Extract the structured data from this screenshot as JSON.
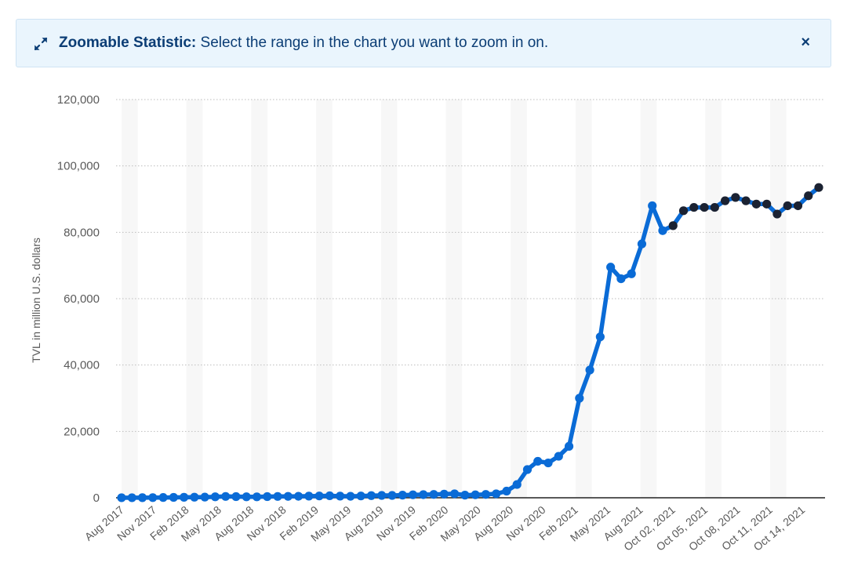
{
  "banner": {
    "title": "Zoomable Statistic:",
    "text": " Select the range in the chart you want to zoom in on.",
    "close": "×"
  },
  "colors": {
    "line": "#0a6bd6",
    "marker_blue": "#0a6bd6",
    "marker_dark": "#1b2232",
    "band": "#f7f7f7",
    "grid": "#bdbdbd",
    "axis": "#222222"
  },
  "chart_data": {
    "type": "line",
    "ylabel": "TVL in million U.S. dollars",
    "ylim": [
      0,
      120000
    ],
    "yticks": [
      "0",
      "20,000",
      "40,000",
      "60,000",
      "80,000",
      "100,000",
      "120,000"
    ],
    "grid": "horizontal dotted",
    "x_tick_labels": [
      "Aug 2017",
      "Nov 2017",
      "Feb 2018",
      "May 2018",
      "Aug 2018",
      "Nov 2018",
      "Feb 2019",
      "May 2019",
      "Aug 2019",
      "Nov 2019",
      "Feb 2020",
      "May 2020",
      "Aug 2020",
      "Nov 2020",
      "Feb 2021",
      "May 2021",
      "Aug 2021",
      "Oct 02, 2021",
      "Oct 05, 2021",
      "Oct 08, 2021",
      "Oct 11, 2021",
      "Oct 14, 2021"
    ],
    "series": [
      {
        "monthly_values": [
          10,
          20,
          30,
          40,
          80,
          120,
          150,
          180,
          200,
          300,
          400,
          350,
          300,
          280,
          350,
          400,
          420,
          450,
          500,
          550,
          600,
          500,
          450,
          550,
          650,
          700,
          700,
          800,
          900,
          950,
          1000,
          1100,
          1200,
          800,
          900,
          1000,
          1200,
          2000,
          4000,
          8500,
          11000,
          10500,
          12500,
          15500,
          30000,
          38500,
          48500,
          69500,
          66000,
          67500,
          76500,
          88000,
          80500
        ],
        "daily_values": [
          82000,
          86500,
          87500,
          87500,
          87500,
          89500,
          90500,
          89500,
          88500,
          88500,
          85500,
          88000,
          88000,
          91000,
          93500
        ]
      }
    ]
  }
}
